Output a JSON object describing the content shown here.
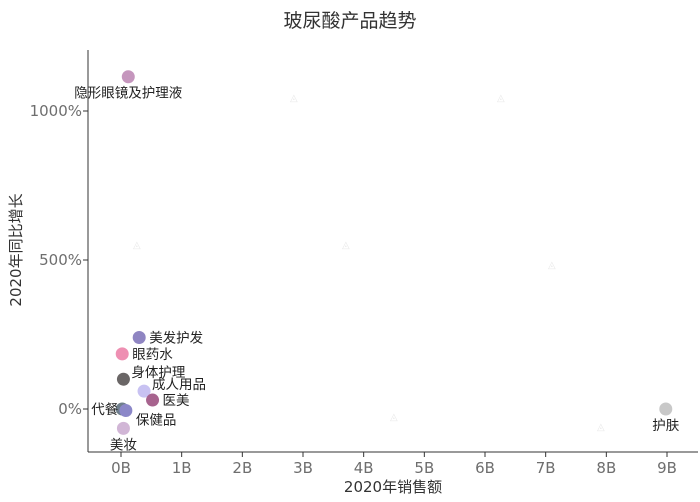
{
  "chart_data": {
    "type": "scatter",
    "title": "玻尿酸产品趋势",
    "xlabel": "2020年销售额",
    "ylabel": "2020年同比增长",
    "xlim": [
      -0.5,
      9.5
    ],
    "ylim": [
      -140,
      1200
    ],
    "x_ticks": [
      {
        "value": 0,
        "label": "0B"
      },
      {
        "value": 1,
        "label": "1B"
      },
      {
        "value": 2,
        "label": "2B"
      },
      {
        "value": 3,
        "label": "3B"
      },
      {
        "value": 4,
        "label": "4B"
      },
      {
        "value": 5,
        "label": "5B"
      },
      {
        "value": 6,
        "label": "6B"
      },
      {
        "value": 7,
        "label": "7B"
      },
      {
        "value": 8,
        "label": "8B"
      },
      {
        "value": 9,
        "label": "9B"
      }
    ],
    "y_ticks": [
      {
        "value": 0,
        "label": "0%"
      },
      {
        "value": 500,
        "label": "500%"
      },
      {
        "value": 1000,
        "label": "1000%"
      }
    ],
    "grid": false,
    "legend": "none",
    "points": [
      {
        "label": "隐形眼镜及护理液",
        "x": 0.12,
        "y": 1115,
        "color": "#c596bd",
        "label_pos": "below"
      },
      {
        "label": "美发护发",
        "x": 0.3,
        "y": 240,
        "color": "#8f85c2",
        "label_pos": "right"
      },
      {
        "label": "眼药水",
        "x": 0.02,
        "y": 185,
        "color": "#ee8fb2",
        "label_pos": "right"
      },
      {
        "label": "身体护理",
        "x": 0.04,
        "y": 100,
        "color": "#6a6666",
        "label_pos": "right-up"
      },
      {
        "label": "成人用品",
        "x": 0.38,
        "y": 60,
        "color": "#c8c2f2",
        "label_pos": "right-up"
      },
      {
        "label": "医美",
        "x": 0.52,
        "y": 30,
        "color": "#a7638e",
        "label_pos": "right"
      },
      {
        "label": "代餐",
        "x": 0.02,
        "y": 0,
        "color": "#6f7f8c",
        "label_pos": "left"
      },
      {
        "label": "保健品",
        "x": 0.08,
        "y": -5,
        "color": "#8b87c8",
        "label_pos": "right-down"
      },
      {
        "label": "美妆",
        "x": 0.04,
        "y": -65,
        "color": "#d1b6d6",
        "label_pos": "below"
      },
      {
        "label": "护肤",
        "x": 8.98,
        "y": 0,
        "color": "#c8c8c8",
        "label_pos": "below"
      }
    ]
  }
}
